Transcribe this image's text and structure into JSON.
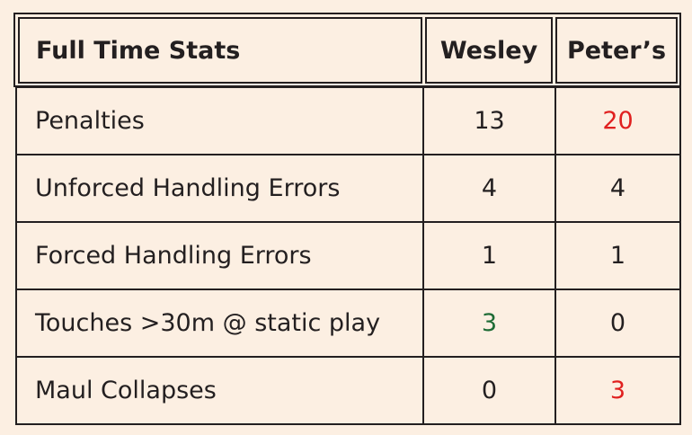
{
  "header": {
    "title": "Full Time Stats",
    "team_a": "Wesley",
    "team_b": "Peter’s"
  },
  "colors": {
    "default": "#231f20",
    "red": "#e0201f",
    "green": "#1e6b35",
    "background": "#fcefe2"
  },
  "rows": [
    {
      "label": "Penalties",
      "a": "13",
      "b": "20",
      "a_color": "default",
      "b_color": "red"
    },
    {
      "label": "Unforced Handling Errors",
      "a": "4",
      "b": "4",
      "a_color": "default",
      "b_color": "default"
    },
    {
      "label": "Forced Handling Errors",
      "a": "1",
      "b": "1",
      "a_color": "default",
      "b_color": "default"
    },
    {
      "label": "Touches >30m @ static play",
      "a": "3",
      "b": "0",
      "a_color": "green",
      "b_color": "default"
    },
    {
      "label": "Maul Collapses",
      "a": "0",
      "b": "3",
      "a_color": "default",
      "b_color": "red"
    }
  ]
}
